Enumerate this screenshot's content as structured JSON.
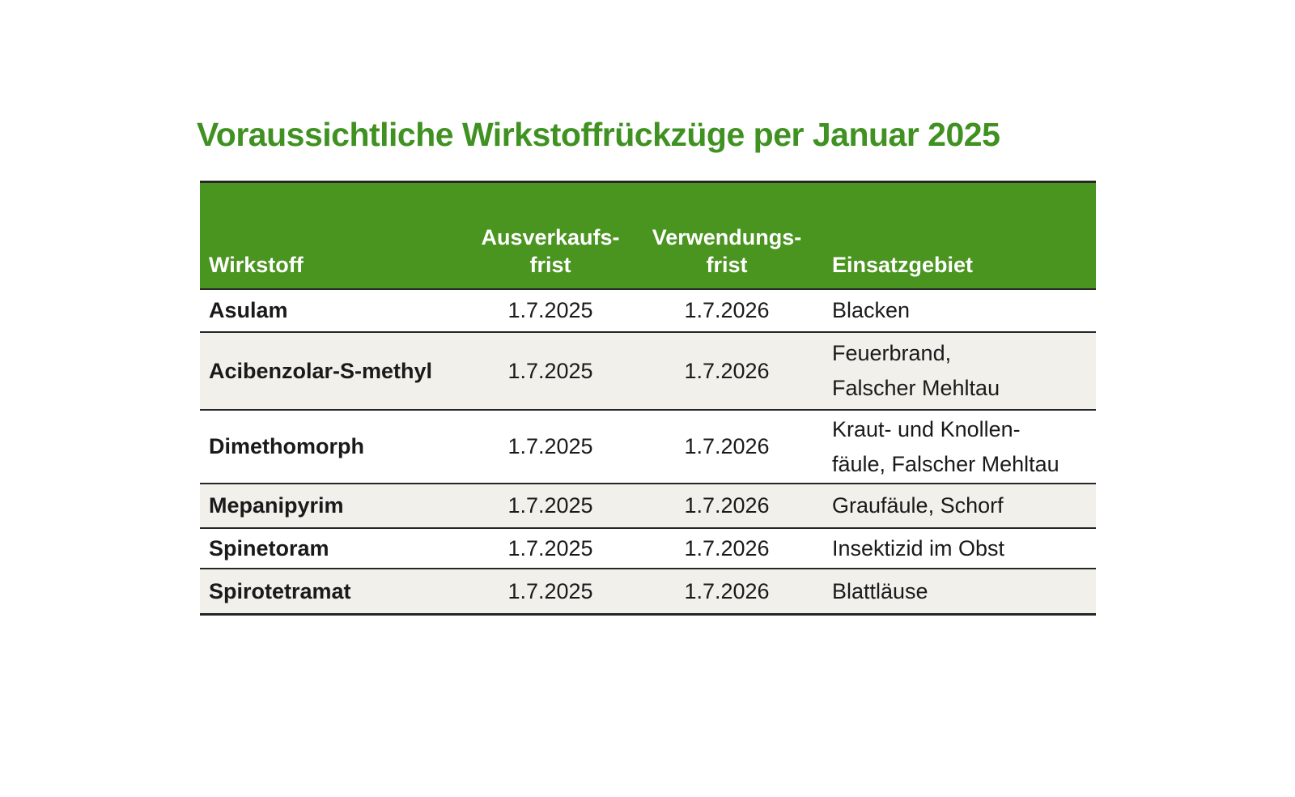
{
  "title": "Voraussichtliche Wirkstoffrückzüge per Januar 2025",
  "colors": {
    "title_green": "#3f9121",
    "header_green": "#4a9420",
    "row_alt": "#f1f0eb",
    "line_dark": "#262626",
    "text_dark": "#1a1a1a",
    "header_text": "#ffffff"
  },
  "table": {
    "headers": [
      "Wirkstoff",
      "Ausverkaufs-\nfrist",
      "Verwendungs-\nfrist",
      "Einsatzgebiet"
    ],
    "rows": [
      {
        "wirkstoff": "Asulam",
        "ausverkaufsfrist": "1.7.2025",
        "verwendungsfrist": "1.7.2026",
        "einsatzgebiet": "Blacken"
      },
      {
        "wirkstoff": "Acibenzolar-S-methyl",
        "ausverkaufsfrist": "1.7.2025",
        "verwendungsfrist": "1.7.2026",
        "einsatzgebiet": "Feuerbrand,\nFalscher Mehltau"
      },
      {
        "wirkstoff": "Dimethomorph",
        "ausverkaufsfrist": "1.7.2025",
        "verwendungsfrist": "1.7.2026",
        "einsatzgebiet": "Kraut- und Knollen-\nfäule, Falscher Mehltau"
      },
      {
        "wirkstoff": "Mepanipyrim",
        "ausverkaufsfrist": "1.7.2025",
        "verwendungsfrist": "1.7.2026",
        "einsatzgebiet": "Graufäule, Schorf"
      },
      {
        "wirkstoff": "Spinetoram",
        "ausverkaufsfrist": "1.7.2025",
        "verwendungsfrist": "1.7.2026",
        "einsatzgebiet": "Insektizid im Obst"
      },
      {
        "wirkstoff": "Spirotetramat",
        "ausverkaufsfrist": "1.7.2025",
        "verwendungsfrist": "1.7.2026",
        "einsatzgebiet": "Blattläuse"
      }
    ]
  }
}
